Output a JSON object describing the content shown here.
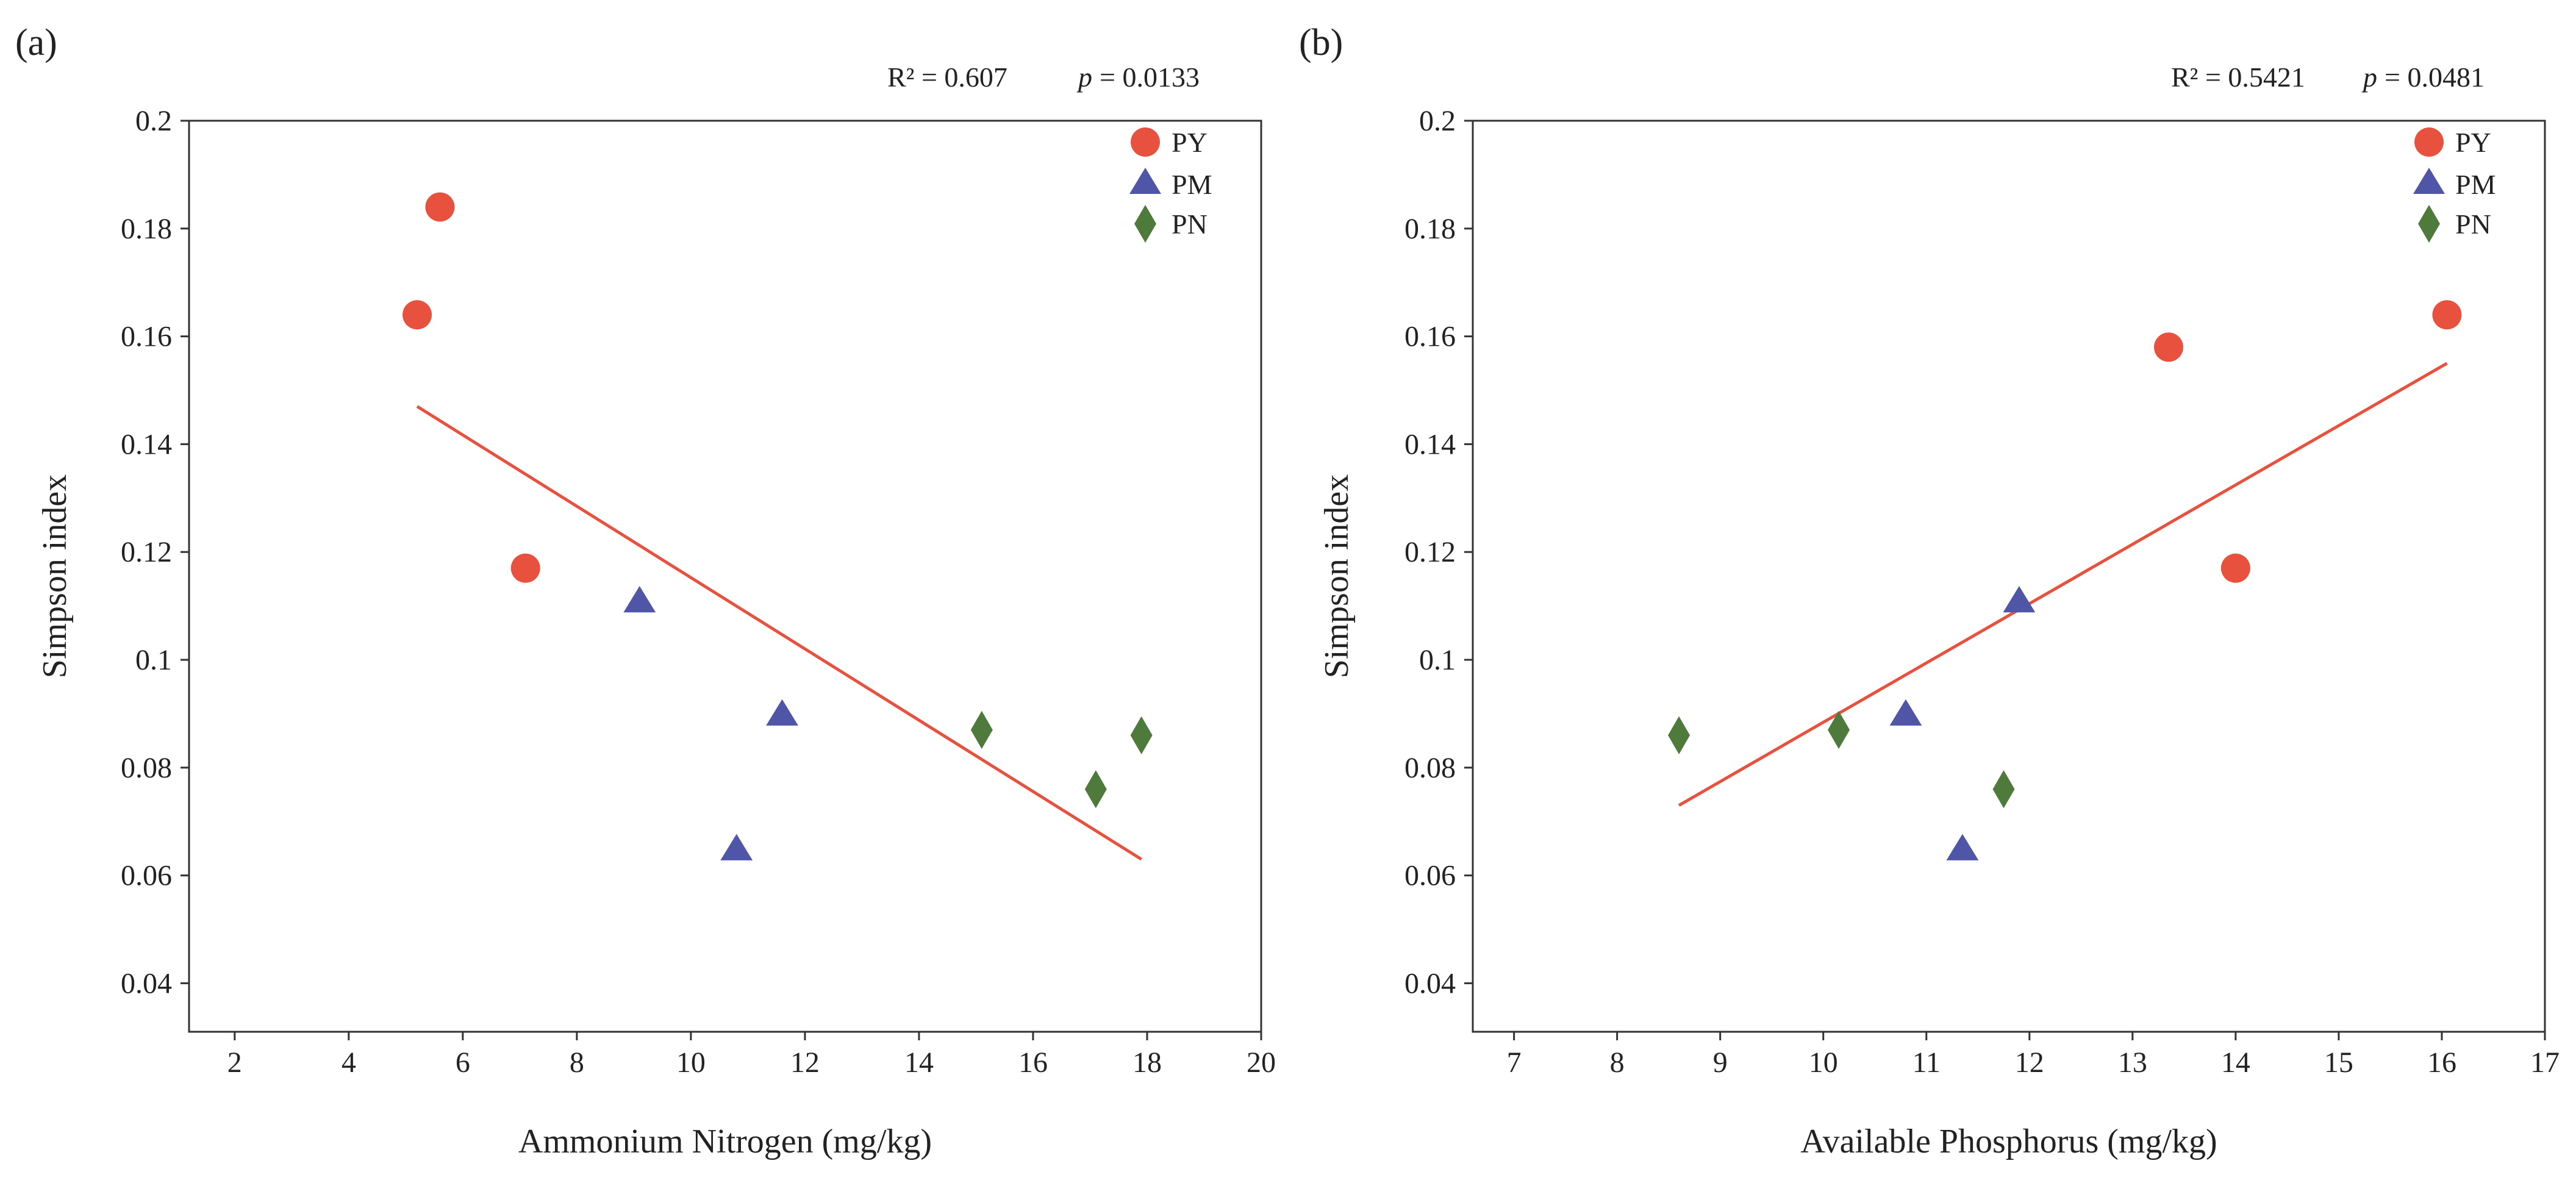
{
  "chart_data": [
    {
      "type": "scatter",
      "panel_label": "(a)",
      "stats": {
        "r2": "R² = 0.607",
        "p_symbol": "p",
        "p_value": "= 0.0133"
      },
      "xlabel": "Ammonium Nitrogen (mg/kg)",
      "ylabel": "Simpson index",
      "xlim": [
        1.2,
        20
      ],
      "ylim": [
        0.031,
        0.2
      ],
      "xticks": [
        2,
        4,
        6,
        8,
        10,
        12,
        14,
        16,
        18,
        20
      ],
      "xtick_labels": [
        "2",
        "4",
        "6",
        "8",
        "10",
        "12",
        "14",
        "16",
        "18",
        "20"
      ],
      "yticks": [
        0.04,
        0.06,
        0.08,
        0.1,
        0.12,
        0.14,
        0.16,
        0.18,
        0.2
      ],
      "ytick_labels": [
        "0.04",
        "0.06",
        "0.08",
        "0.1",
        "0.12",
        "0.14",
        "0.16",
        "0.18",
        "0.2"
      ],
      "legend_position": "top-right",
      "series": [
        {
          "name": "PY",
          "marker": "circle",
          "color": "#e8513e",
          "points": [
            [
              5.2,
              0.164
            ],
            [
              5.6,
              0.184
            ],
            [
              7.1,
              0.117
            ]
          ]
        },
        {
          "name": "PM",
          "marker": "triangle",
          "color": "#4f56a8",
          "points": [
            [
              9.1,
              0.111
            ],
            [
              11.6,
              0.09
            ],
            [
              10.8,
              0.065
            ]
          ]
        },
        {
          "name": "PN",
          "marker": "diamond",
          "color": "#4e7a3c",
          "points": [
            [
              15.1,
              0.087
            ],
            [
              17.1,
              0.076
            ],
            [
              17.9,
              0.086
            ]
          ]
        }
      ],
      "fit_line": {
        "color": "#e8513e",
        "x": [
          5.2,
          17.9
        ],
        "y": [
          0.147,
          0.063
        ]
      }
    },
    {
      "type": "scatter",
      "panel_label": "(b)",
      "stats": {
        "r2": "R² = 0.5421",
        "p_symbol": "p",
        "p_value": "= 0.0481"
      },
      "xlabel": "Available Phosphorus (mg/kg)",
      "ylabel": "Simpson index",
      "xlim": [
        6.6,
        17
      ],
      "ylim": [
        0.031,
        0.2
      ],
      "xticks": [
        7,
        8,
        9,
        10,
        11,
        12,
        13,
        14,
        15,
        16,
        17
      ],
      "xtick_labels": [
        "7",
        "8",
        "9",
        "10",
        "11",
        "12",
        "13",
        "14",
        "15",
        "16",
        "17"
      ],
      "yticks": [
        0.04,
        0.06,
        0.08,
        0.1,
        0.12,
        0.14,
        0.16,
        0.18,
        0.2
      ],
      "ytick_labels": [
        "0.04",
        "0.06",
        "0.08",
        "0.1",
        "0.12",
        "0.14",
        "0.16",
        "0.18",
        "0.2"
      ],
      "legend_position": "top-right",
      "series": [
        {
          "name": "PY",
          "marker": "circle",
          "color": "#e8513e",
          "points": [
            [
              13.35,
              0.158
            ],
            [
              14.0,
              0.117
            ],
            [
              16.05,
              0.164
            ]
          ]
        },
        {
          "name": "PM",
          "marker": "triangle",
          "color": "#4f56a8",
          "points": [
            [
              11.9,
              0.111
            ],
            [
              10.8,
              0.09
            ],
            [
              11.35,
              0.065
            ]
          ]
        },
        {
          "name": "PN",
          "marker": "diamond",
          "color": "#4e7a3c",
          "points": [
            [
              8.6,
              0.086
            ],
            [
              10.15,
              0.087
            ],
            [
              11.75,
              0.076
            ]
          ]
        }
      ],
      "fit_line": {
        "color": "#e8513e",
        "x": [
          8.6,
          16.05
        ],
        "y": [
          0.073,
          0.155
        ]
      }
    }
  ]
}
